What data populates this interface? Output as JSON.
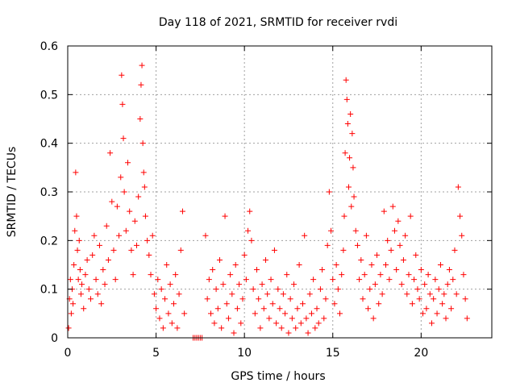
{
  "chart_data": {
    "type": "scatter",
    "title": "Day 118 of 2021, SRMTID for receiver rvdi",
    "xlabel": "GPS time / hours",
    "ylabel": "SRMTID / TECUs",
    "xlim": [
      0,
      24
    ],
    "ylim": [
      0,
      0.6
    ],
    "xticks": [
      0,
      5,
      10,
      15,
      20
    ],
    "xtick_labels": [
      "0",
      "5",
      "10",
      "15",
      "20"
    ],
    "yticks": [
      0,
      0.1,
      0.2,
      0.3,
      0.4,
      0.5,
      0.6
    ],
    "ytick_labels": [
      "0",
      "0.1",
      "0.2",
      "0.3",
      "0.4",
      "0.5",
      "0.6"
    ],
    "grid": true,
    "marker": "+",
    "series": [
      {
        "name": "SRMTID",
        "color": "#ff0000",
        "x": [
          0.05,
          0.1,
          0.15,
          0.2,
          0.25,
          0.3,
          0.35,
          0.4,
          0.45,
          0.5,
          0.55,
          0.6,
          0.65,
          0.7,
          0.75,
          0.8,
          0.9,
          1.0,
          1.1,
          1.2,
          1.3,
          1.4,
          1.5,
          1.6,
          1.7,
          1.8,
          1.9,
          2.0,
          2.1,
          2.2,
          2.3,
          2.4,
          2.5,
          2.6,
          2.7,
          2.8,
          2.9,
          3.0,
          3.05,
          3.1,
          3.15,
          3.2,
          3.3,
          3.4,
          3.5,
          3.6,
          3.7,
          3.8,
          3.9,
          4.0,
          4.1,
          4.15,
          4.2,
          4.25,
          4.3,
          4.35,
          4.4,
          4.5,
          4.6,
          4.7,
          4.8,
          4.9,
          5.0,
          5.1,
          5.2,
          5.3,
          5.4,
          5.5,
          5.6,
          5.7,
          5.8,
          5.9,
          6.0,
          6.1,
          6.2,
          6.3,
          6.4,
          6.5,
          6.6,
          7.1,
          7.2,
          7.3,
          7.4,
          7.5,
          7.6,
          7.8,
          7.9,
          8.0,
          8.1,
          8.2,
          8.3,
          8.4,
          8.5,
          8.6,
          8.7,
          8.8,
          8.9,
          9.0,
          9.1,
          9.2,
          9.3,
          9.4,
          9.5,
          9.6,
          9.7,
          9.8,
          9.9,
          10.0,
          10.1,
          10.2,
          10.3,
          10.4,
          10.5,
          10.6,
          10.7,
          10.8,
          10.9,
          11.0,
          11.1,
          11.2,
          11.3,
          11.4,
          11.5,
          11.6,
          11.7,
          11.8,
          11.9,
          12.0,
          12.1,
          12.2,
          12.3,
          12.4,
          12.5,
          12.6,
          12.7,
          12.8,
          12.9,
          13.0,
          13.1,
          13.2,
          13.3,
          13.4,
          13.5,
          13.6,
          13.7,
          13.8,
          13.9,
          14.0,
          14.1,
          14.2,
          14.3,
          14.4,
          14.5,
          14.6,
          14.7,
          14.8,
          14.9,
          15.0,
          15.1,
          15.2,
          15.3,
          15.4,
          15.5,
          15.6,
          15.65,
          15.7,
          15.75,
          15.8,
          15.85,
          15.9,
          15.95,
          16.0,
          16.05,
          16.1,
          16.15,
          16.2,
          16.3,
          16.4,
          16.5,
          16.6,
          16.7,
          16.8,
          16.9,
          17.0,
          17.1,
          17.2,
          17.3,
          17.4,
          17.5,
          17.6,
          17.7,
          17.8,
          17.9,
          18.0,
          18.1,
          18.2,
          18.3,
          18.4,
          18.5,
          18.6,
          18.7,
          18.8,
          18.9,
          19.0,
          19.1,
          19.2,
          19.3,
          19.4,
          19.5,
          19.6,
          19.7,
          19.8,
          19.9,
          20.0,
          20.1,
          20.2,
          20.3,
          20.4,
          20.5,
          20.6,
          20.7,
          20.8,
          20.9,
          21.0,
          21.1,
          21.2,
          21.3,
          21.4,
          21.5,
          21.6,
          21.7,
          21.8,
          21.9,
          22.0,
          22.1,
          22.2,
          22.3,
          22.4,
          22.5,
          22.6
        ],
        "y": [
          0.02,
          0.08,
          0.12,
          0.05,
          0.1,
          0.07,
          0.15,
          0.22,
          0.34,
          0.25,
          0.18,
          0.12,
          0.2,
          0.14,
          0.09,
          0.11,
          0.06,
          0.13,
          0.16,
          0.1,
          0.08,
          0.17,
          0.21,
          0.12,
          0.09,
          0.19,
          0.07,
          0.14,
          0.11,
          0.23,
          0.16,
          0.38,
          0.28,
          0.18,
          0.12,
          0.27,
          0.21,
          0.33,
          0.54,
          0.48,
          0.41,
          0.3,
          0.22,
          0.36,
          0.26,
          0.18,
          0.13,
          0.24,
          0.19,
          0.29,
          0.45,
          0.52,
          0.56,
          0.4,
          0.34,
          0.31,
          0.25,
          0.2,
          0.17,
          0.13,
          0.21,
          0.09,
          0.06,
          0.12,
          0.04,
          0.1,
          0.02,
          0.08,
          0.15,
          0.05,
          0.11,
          0.03,
          0.07,
          0.13,
          0.02,
          0.09,
          0.18,
          0.26,
          0.05,
          0.0,
          0.0,
          0.0,
          0.0,
          0.0,
          0.0,
          0.21,
          0.08,
          0.12,
          0.05,
          0.14,
          0.03,
          0.1,
          0.06,
          0.16,
          0.02,
          0.11,
          0.25,
          0.07,
          0.04,
          0.13,
          0.09,
          0.01,
          0.15,
          0.06,
          0.11,
          0.03,
          0.08,
          0.17,
          0.12,
          0.22,
          0.26,
          0.2,
          0.1,
          0.05,
          0.14,
          0.08,
          0.02,
          0.11,
          0.06,
          0.16,
          0.09,
          0.04,
          0.12,
          0.07,
          0.18,
          0.03,
          0.1,
          0.06,
          0.02,
          0.09,
          0.05,
          0.13,
          0.01,
          0.08,
          0.04,
          0.11,
          0.02,
          0.06,
          0.15,
          0.03,
          0.07,
          0.21,
          0.04,
          0.01,
          0.09,
          0.05,
          0.12,
          0.02,
          0.06,
          0.03,
          0.1,
          0.14,
          0.04,
          0.08,
          0.19,
          0.3,
          0.22,
          0.12,
          0.07,
          0.15,
          0.1,
          0.05,
          0.13,
          0.18,
          0.25,
          0.38,
          0.53,
          0.49,
          0.44,
          0.31,
          0.37,
          0.46,
          0.27,
          0.42,
          0.35,
          0.29,
          0.22,
          0.19,
          0.12,
          0.16,
          0.08,
          0.13,
          0.21,
          0.06,
          0.1,
          0.15,
          0.04,
          0.11,
          0.17,
          0.07,
          0.13,
          0.09,
          0.26,
          0.15,
          0.2,
          0.12,
          0.18,
          0.27,
          0.22,
          0.14,
          0.24,
          0.19,
          0.11,
          0.16,
          0.21,
          0.09,
          0.13,
          0.25,
          0.07,
          0.12,
          0.17,
          0.1,
          0.08,
          0.14,
          0.05,
          0.11,
          0.06,
          0.13,
          0.09,
          0.03,
          0.08,
          0.12,
          0.05,
          0.1,
          0.15,
          0.07,
          0.09,
          0.04,
          0.11,
          0.14,
          0.06,
          0.12,
          0.18,
          0.09,
          0.31,
          0.25,
          0.21,
          0.13,
          0.08,
          0.04
        ]
      }
    ]
  }
}
